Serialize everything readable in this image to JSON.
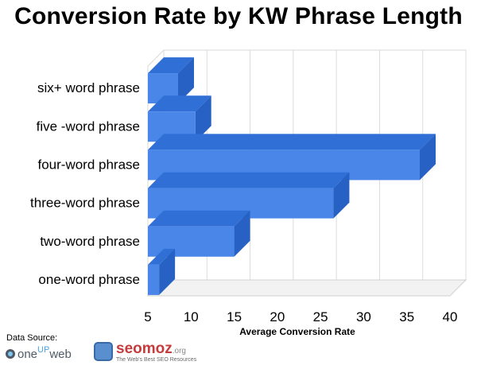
{
  "chart_data": {
    "type": "bar",
    "orientation": "horizontal",
    "style": "3d",
    "title": "Conversion Rate by KW Phrase Length",
    "xlabel": "Average Conversion Rate",
    "ylabel": "",
    "xlim": [
      5,
      40
    ],
    "xticks": [
      5,
      10,
      15,
      20,
      25,
      30,
      35,
      40
    ],
    "grid": true,
    "bar_color": "#4a86e8",
    "categories": [
      "six+ word phrase",
      "five -word phrase",
      "four-word phrase",
      "three-word phrase",
      "two-word phrase",
      "one-word phrase"
    ],
    "values": [
      8.5,
      10.5,
      36.5,
      26.5,
      15,
      6.3
    ]
  },
  "footer": {
    "source_label": "Data Source:",
    "logos": [
      {
        "name": "oneupweb",
        "text_one": "one",
        "text_up": "UP",
        "text_web": "web"
      },
      {
        "name": "seomoz",
        "brand": "seomoz",
        "tld": ".org",
        "tagline": "The Web's Best SEO Resources"
      }
    ]
  }
}
